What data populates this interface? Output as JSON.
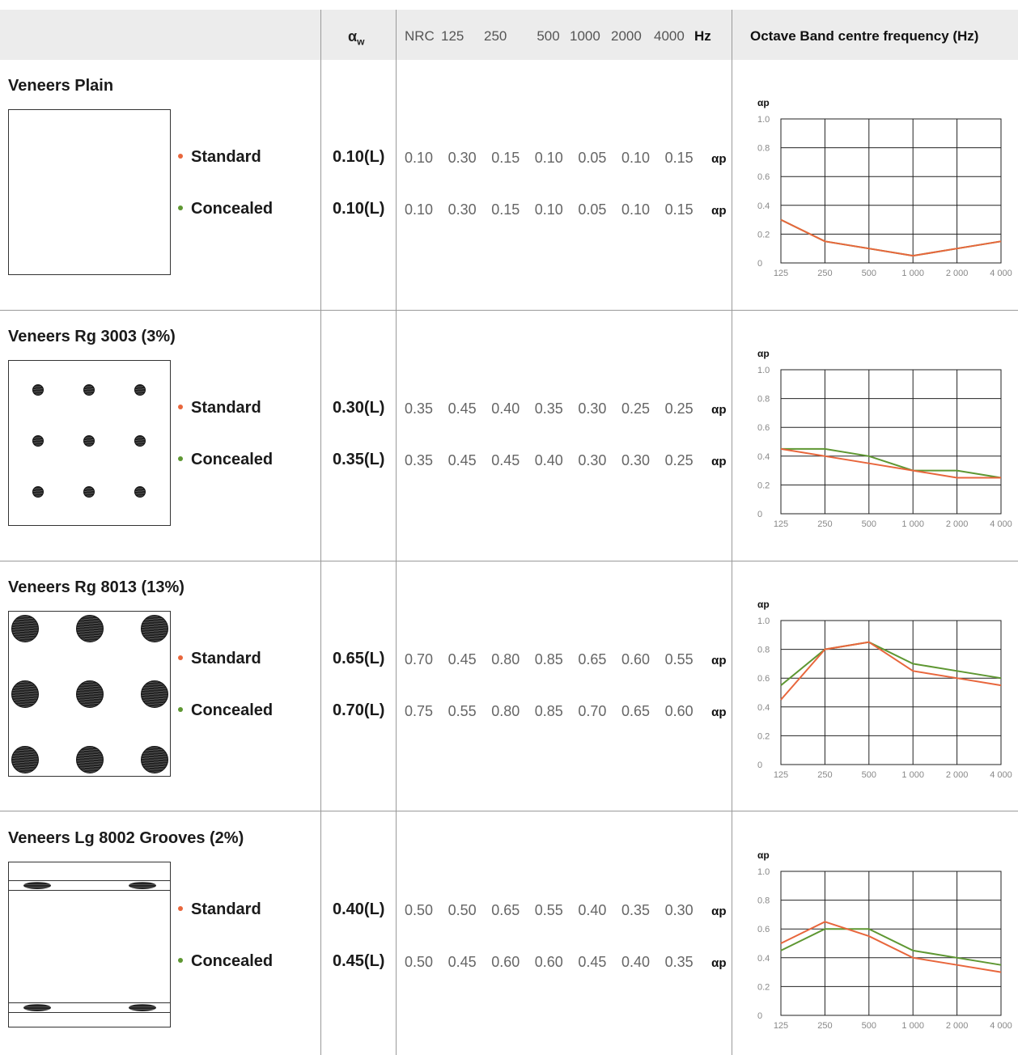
{
  "header": {
    "alpha_w": "α",
    "alpha_w_sub": "w",
    "columns": [
      "NRC",
      "125",
      "250",
      "500",
      "1000",
      "2000",
      "4000"
    ],
    "hz": "Hz",
    "octave": "Octave Band centre frequency (Hz)"
  },
  "colors": {
    "standard": "#e8663c",
    "concealed": "#5e9732"
  },
  "alpha_p": "αp",
  "products": [
    {
      "title": "Veneers Plain",
      "pattern": "plain",
      "options": [
        {
          "label": "Standard",
          "aw": "0.10(L)",
          "values": [
            "0.10",
            "0.30",
            "0.15",
            "0.10",
            "0.05",
            "0.10",
            "0.15"
          ]
        },
        {
          "label": "Concealed",
          "aw": "0.10(L)",
          "values": [
            "0.10",
            "0.30",
            "0.15",
            "0.10",
            "0.05",
            "0.10",
            "0.15"
          ]
        }
      ]
    },
    {
      "title": "Veneers Rg 3003 (3%)",
      "pattern": "small-dots",
      "options": [
        {
          "label": "Standard",
          "aw": "0.30(L)",
          "values": [
            "0.35",
            "0.45",
            "0.40",
            "0.35",
            "0.30",
            "0.25",
            "0.25"
          ]
        },
        {
          "label": "Concealed",
          "aw": "0.35(L)",
          "values": [
            "0.35",
            "0.45",
            "0.45",
            "0.40",
            "0.30",
            "0.30",
            "0.25"
          ]
        }
      ]
    },
    {
      "title": "Veneers Rg 8013 (13%)",
      "pattern": "large-dots",
      "options": [
        {
          "label": "Standard",
          "aw": "0.65(L)",
          "values": [
            "0.70",
            "0.45",
            "0.80",
            "0.85",
            "0.65",
            "0.60",
            "0.55"
          ]
        },
        {
          "label": "Concealed",
          "aw": "0.70(L)",
          "values": [
            "0.75",
            "0.55",
            "0.80",
            "0.85",
            "0.70",
            "0.65",
            "0.60"
          ]
        }
      ]
    },
    {
      "title": "Veneers Lg 8002 Grooves (2%)",
      "pattern": "grooves",
      "options": [
        {
          "label": "Standard",
          "aw": "0.40(L)",
          "values": [
            "0.50",
            "0.50",
            "0.65",
            "0.55",
            "0.40",
            "0.35",
            "0.30"
          ]
        },
        {
          "label": "Concealed",
          "aw": "0.45(L)",
          "values": [
            "0.50",
            "0.45",
            "0.60",
            "0.60",
            "0.45",
            "0.40",
            "0.35"
          ]
        }
      ]
    }
  ],
  "chart_data": [
    {
      "type": "line",
      "x": [
        "125",
        "250",
        "500",
        "1 000",
        "2 000",
        "4 000"
      ],
      "ylabel": "αp",
      "yticks": [
        "0",
        "0.2",
        "0.4",
        "0.6",
        "0.8",
        "1.0"
      ],
      "ylim": [
        0,
        1.0
      ],
      "grid": true,
      "series": [
        {
          "name": "Standard",
          "values": [
            0.3,
            0.15,
            0.1,
            0.05,
            0.1,
            0.15
          ]
        },
        {
          "name": "Concealed",
          "values": [
            0.3,
            0.15,
            0.1,
            0.05,
            0.1,
            0.15
          ]
        }
      ]
    },
    {
      "type": "line",
      "x": [
        "125",
        "250",
        "500",
        "1 000",
        "2 000",
        "4 000"
      ],
      "ylabel": "αp",
      "yticks": [
        "0",
        "0.2",
        "0.4",
        "0.6",
        "0.8",
        "1.0"
      ],
      "ylim": [
        0,
        1.0
      ],
      "grid": true,
      "series": [
        {
          "name": "Standard",
          "values": [
            0.45,
            0.4,
            0.35,
            0.3,
            0.25,
            0.25
          ]
        },
        {
          "name": "Concealed",
          "values": [
            0.45,
            0.45,
            0.4,
            0.3,
            0.3,
            0.25
          ]
        }
      ]
    },
    {
      "type": "line",
      "x": [
        "125",
        "250",
        "500",
        "1 000",
        "2 000",
        "4 000"
      ],
      "ylabel": "αp",
      "yticks": [
        "0",
        "0.2",
        "0.4",
        "0.6",
        "0.8",
        "1.0"
      ],
      "ylim": [
        0,
        1.0
      ],
      "grid": true,
      "series": [
        {
          "name": "Standard",
          "values": [
            0.45,
            0.8,
            0.85,
            0.65,
            0.6,
            0.55
          ]
        },
        {
          "name": "Concealed",
          "values": [
            0.55,
            0.8,
            0.85,
            0.7,
            0.65,
            0.6
          ]
        }
      ]
    },
    {
      "type": "line",
      "x": [
        "125",
        "250",
        "500",
        "1 000",
        "2 000",
        "4 000"
      ],
      "ylabel": "αp",
      "yticks": [
        "0",
        "0.2",
        "0.4",
        "0.6",
        "0.8",
        "1.0"
      ],
      "ylim": [
        0,
        1.0
      ],
      "grid": true,
      "series": [
        {
          "name": "Standard",
          "values": [
            0.5,
            0.65,
            0.55,
            0.4,
            0.35,
            0.3
          ]
        },
        {
          "name": "Concealed",
          "values": [
            0.45,
            0.6,
            0.6,
            0.45,
            0.4,
            0.35
          ]
        }
      ]
    }
  ]
}
